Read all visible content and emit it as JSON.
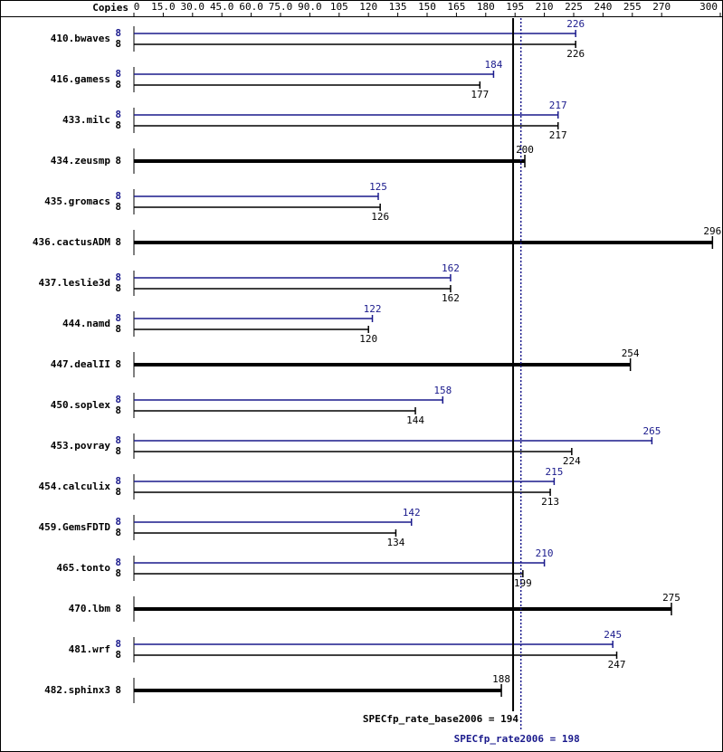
{
  "chart_data": {
    "type": "bar",
    "x_header": "Copies",
    "categories": [
      "410.bwaves",
      "416.gamess",
      "433.milc",
      "434.zeusmp",
      "435.gromacs",
      "436.cactusADM",
      "437.leslie3d",
      "444.namd",
      "447.dealII",
      "450.soplex",
      "453.povray",
      "454.calculix",
      "459.GemsFDTD",
      "465.tonto",
      "470.lbm",
      "481.wrf",
      "482.sphinx3"
    ],
    "series": [
      {
        "color": "#000000",
        "copies": [
          8,
          8,
          8,
          8,
          8,
          8,
          8,
          8,
          8,
          8,
          8,
          8,
          8,
          8,
          8,
          8,
          8
        ],
        "values": [
          226,
          177,
          217,
          200,
          126,
          296,
          162,
          120,
          254,
          144,
          224,
          213,
          134,
          199,
          275,
          247,
          188
        ]
      },
      {
        "color": "#1a1a8c",
        "copies": [
          8,
          8,
          8,
          null,
          8,
          null,
          8,
          8,
          null,
          8,
          8,
          8,
          8,
          8,
          null,
          8,
          null
        ],
        "values": [
          226,
          184,
          217,
          null,
          125,
          null,
          162,
          122,
          null,
          158,
          265,
          215,
          142,
          210,
          null,
          245,
          null
        ]
      }
    ],
    "xlim": [
      0,
      300
    ],
    "xticks": [
      0,
      {
        "value": 15,
        "label": "15.0"
      },
      {
        "value": 30,
        "label": "30.0"
      },
      {
        "value": 45,
        "label": "45.0"
      },
      {
        "value": 60,
        "label": "60.0"
      },
      {
        "value": 75,
        "label": "75.0"
      },
      {
        "value": 90,
        "label": "90.0"
      },
      105,
      120,
      135,
      150,
      165,
      180,
      195,
      210,
      225,
      240,
      255,
      270,
      300
    ],
    "reference_lines": [
      {
        "label": "SPECfp_rate_base2006 =",
        "value": 194,
        "color": "#000000",
        "dashed": false
      },
      {
        "label": "SPECfp_rate2006 =",
        "value": 198,
        "color": "#1a1a8c",
        "dashed": true
      }
    ]
  }
}
